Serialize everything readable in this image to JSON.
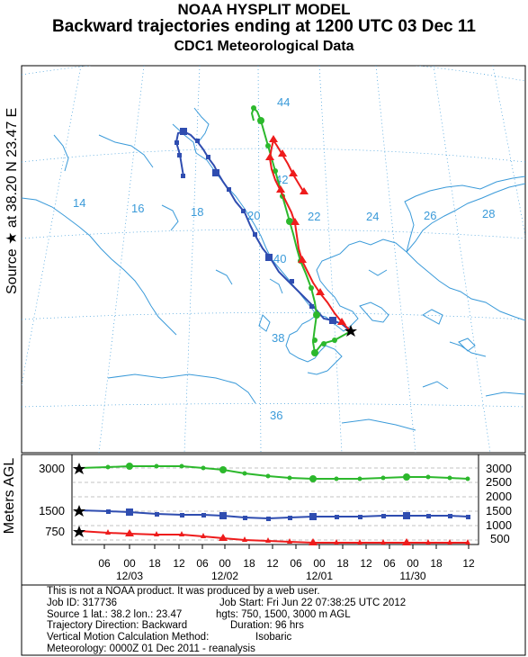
{
  "header": {
    "line1": "NOAA HYSPLIT MODEL",
    "line2": "Backward trajectories ending at 1200 UTC 03 Dec 11",
    "line3": "CDC1 Meteorological Data"
  },
  "side_label": "Source ★ at  38.20 N  23.47 E",
  "height_axis_label": "Meters AGL",
  "map": {
    "longitude_labels": [
      "14",
      "16",
      "18",
      "20",
      "22",
      "24",
      "26",
      "28"
    ],
    "latitude_labels": [
      "44",
      "42",
      "40",
      "38",
      "36"
    ],
    "source_marker": "black-star"
  },
  "colors": {
    "traj_750": "#ee1c1c",
    "traj_1500": "#2f4db0",
    "traj_3000": "#2cb82c",
    "coast": "#3a9ad9",
    "grid": "#3a9ad9"
  },
  "trajectories": [
    {
      "height": "750",
      "color": "#ee1c1c"
    },
    {
      "height": "1500",
      "color": "#2f4db0"
    },
    {
      "height": "3000",
      "color": "#2cb82c"
    }
  ],
  "profile": {
    "left_ticks": [
      "3000",
      "1500",
      "750"
    ],
    "right_ticks": [
      "3000",
      "2500",
      "2000",
      "1500",
      "1000",
      "500"
    ],
    "hour_ticks": [
      "06",
      "00",
      "18",
      "12",
      "06",
      "00",
      "18",
      "12",
      "06",
      "00",
      "18",
      "12",
      "06",
      "00",
      "18",
      "12"
    ],
    "date_labels": [
      "12/03",
      "12/02",
      "12/01",
      "11/30"
    ]
  },
  "info": {
    "line1": "This is not a NOAA product. It was produced by a web user.",
    "job_id": "Job ID: 317736",
    "job_start": "Job Start: Fri Jun 22 07:38:25 UTC 2012",
    "source": "Source 1 lat.: 38.2  lon.: 23.47",
    "hgts": "hgts: 750, 1500, 3000 m AGL",
    "direction": "Trajectory Direction: Backward",
    "duration": "Duration: 96 hrs",
    "vertical": "Vertical Motion Calculation Method:",
    "vertical_value": "Isobaric",
    "meteorology": "Meteorology: 0000Z 01 Dec 2011 - reanalysis"
  }
}
